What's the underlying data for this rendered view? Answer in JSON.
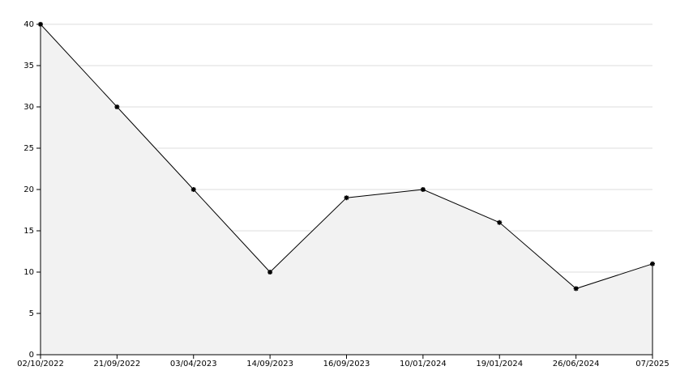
{
  "chart_data": {
    "type": "area",
    "categories": [
      "02/10/2022",
      "21/09/2022",
      "03/04/2023",
      "14/09/2023",
      "16/09/2023",
      "10/01/2024",
      "19/01/2024",
      "26/06/2024",
      "07/2025"
    ],
    "values": [
      40,
      30,
      20,
      10,
      19,
      20,
      16,
      8,
      11
    ],
    "color": "#000000",
    "fill": "#f2f2f2",
    "ylim": [
      0,
      40
    ],
    "yticks": [
      0,
      5,
      10,
      15,
      20,
      25,
      30,
      35,
      40
    ],
    "grid": true
  }
}
